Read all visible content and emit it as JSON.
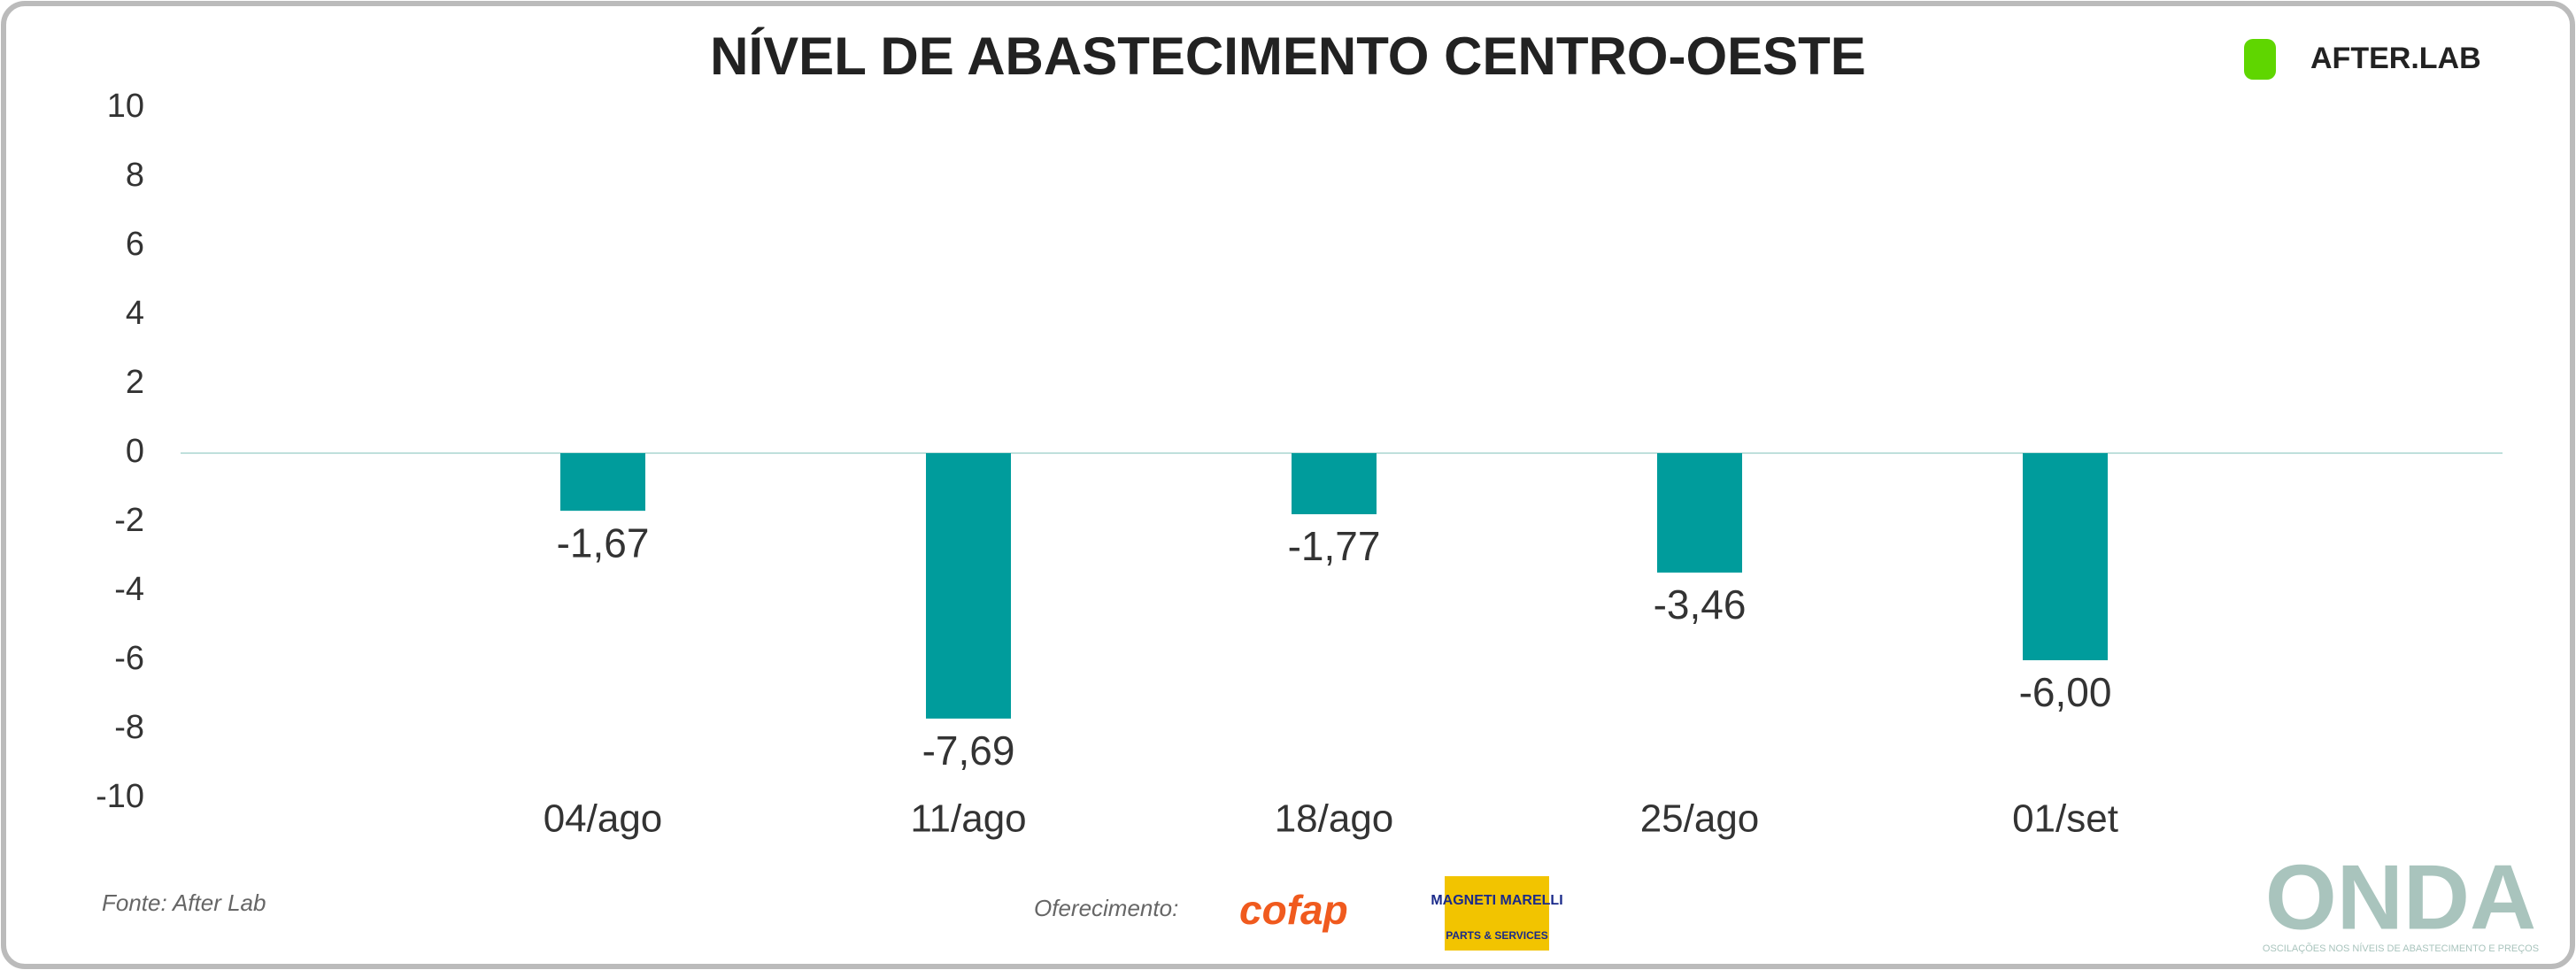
{
  "chart_data": {
    "type": "bar",
    "title": "NÍVEL DE ABASTECIMENTO CENTRO-OESTE",
    "categories": [
      "04/ago",
      "11/ago",
      "18/ago",
      "25/ago",
      "01/set"
    ],
    "values": [
      -1.67,
      -7.69,
      -1.77,
      -3.46,
      -6.0
    ],
    "value_labels": [
      "-1,67",
      "-7,69",
      "-1,77",
      "-3,46",
      "-6,00"
    ],
    "color": "#009c9c",
    "ylim": [
      -10,
      10
    ],
    "yticks": [
      -10,
      -8,
      -6,
      -4,
      -2,
      0,
      2,
      4,
      6,
      8,
      10
    ],
    "grid": false,
    "source": "Fonte: After Lab",
    "sponsor_label": "Oferecimento:",
    "logos": {
      "afterlab": "AFTER.LAB",
      "cofap": "cofap",
      "magneti": "MAGNETI MARELLI",
      "magneti_sub": "PARTS & SERVICES",
      "onda": "ONDA",
      "onda_sub": "OSCILAÇÕES NOS NÍVEIS DE ABASTECIMENTO E PREÇOS"
    }
  }
}
